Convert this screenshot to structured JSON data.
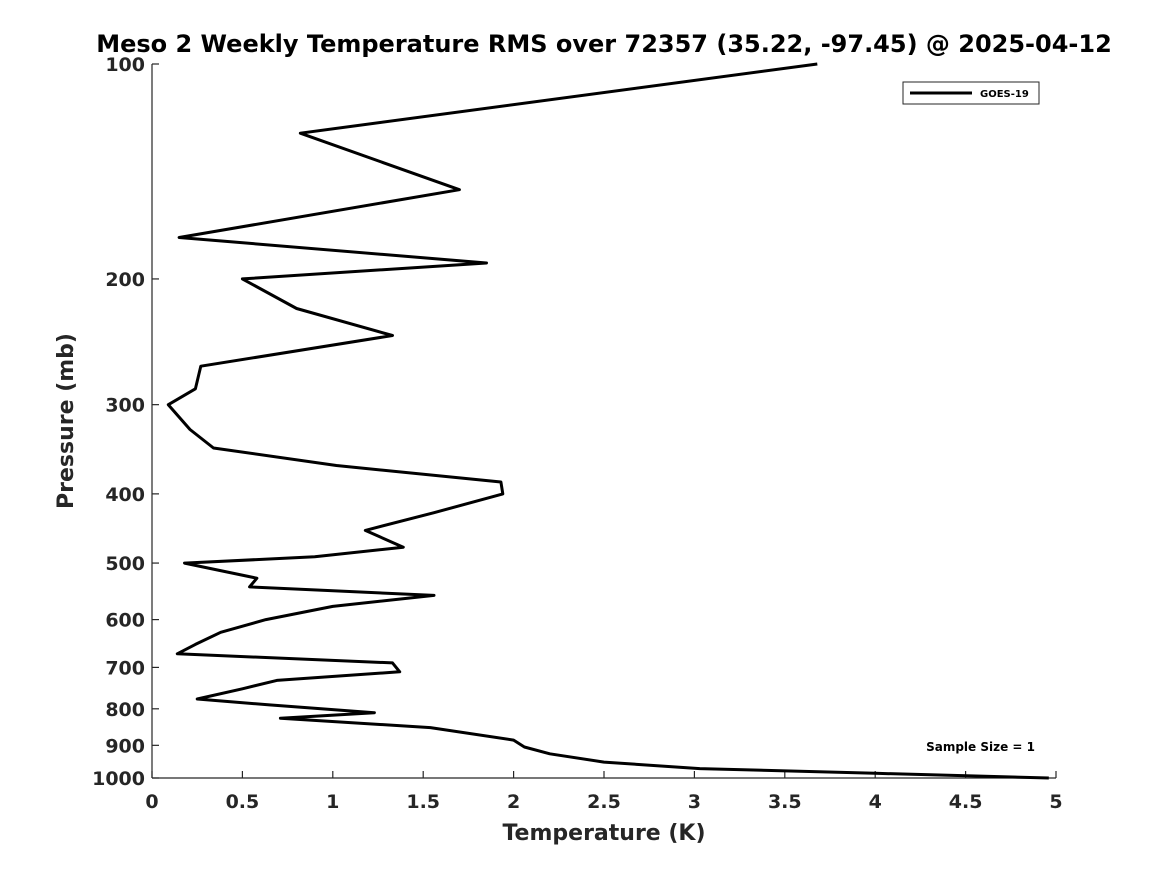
{
  "chart_data": {
    "type": "line",
    "title": "Meso 2 Weekly Temperature RMS over 72357 (35.22, -97.45) @ 2025-04-12",
    "xlabel": "Temperature (K)",
    "ylabel": "Pressure (mb)",
    "xlim": [
      0,
      5
    ],
    "ylim": [
      1000,
      100
    ],
    "yscale": "log",
    "xticks": [
      0,
      0.5,
      1,
      1.5,
      2,
      2.5,
      3,
      3.5,
      4,
      4.5,
      5
    ],
    "xtick_labels": [
      "0",
      "0.5",
      "1",
      "1.5",
      "2",
      "2.5",
      "3",
      "3.5",
      "4",
      "4.5",
      "5"
    ],
    "yticks": [
      100,
      200,
      300,
      400,
      500,
      600,
      700,
      800,
      900,
      1000
    ],
    "ytick_labels": [
      "100",
      "200",
      "300",
      "400",
      "500",
      "600",
      "700",
      "800",
      "900",
      "1000"
    ],
    "grid": false,
    "legend_position": "top-right",
    "color": "#000000",
    "series": [
      {
        "name": "GOES-19",
        "x": [
          3.68,
          0.82,
          1.7,
          0.15,
          1.85,
          0.5,
          0.8,
          1.33,
          0.27,
          0.24,
          0.09,
          0.21,
          0.34,
          1.02,
          1.93,
          1.94,
          1.56,
          1.18,
          1.39,
          0.9,
          0.18,
          0.58,
          0.54,
          1.56,
          1.0,
          0.63,
          0.38,
          0.24,
          0.14,
          1.33,
          1.37,
          0.69,
          0.5,
          0.25,
          0.65,
          1.23,
          0.71,
          1.54,
          2.0,
          2.06,
          2.2,
          2.5,
          3.03,
          4.0,
          4.96
        ],
        "y": [
          100,
          125,
          150,
          175,
          190,
          200,
          220,
          240,
          265,
          285,
          300,
          325,
          345,
          365,
          385,
          400,
          425,
          450,
          475,
          490,
          500,
          525,
          540,
          555,
          575,
          600,
          625,
          650,
          670,
          690,
          710,
          730,
          750,
          775,
          790,
          810,
          825,
          850,
          885,
          905,
          925,
          950,
          970,
          985,
          1000
        ]
      }
    ],
    "annotations": [
      {
        "text": "Sample Size = 1",
        "position": "bottom-right"
      }
    ]
  }
}
